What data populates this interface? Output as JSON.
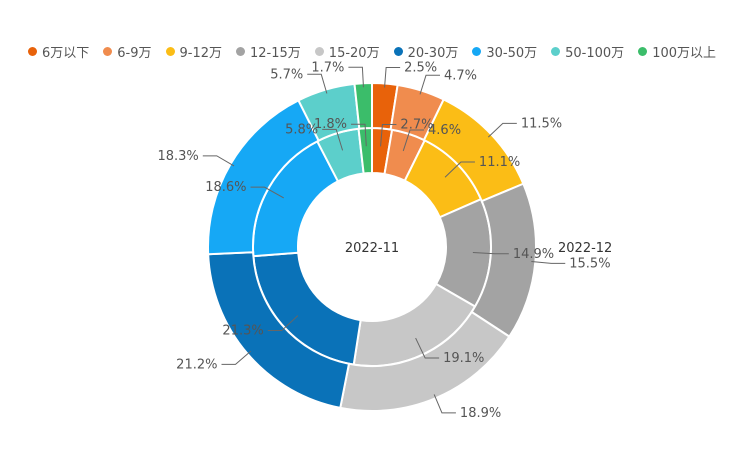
{
  "chart_data": {
    "type": "pie",
    "categories": [
      "6万以下",
      "6-9万",
      "9-12万",
      "12-15万",
      "15-20万",
      "20-30万",
      "30-50万",
      "50-100万",
      "100万以上"
    ],
    "colors": [
      "#e8620a",
      "#f08c4e",
      "#fbbd16",
      "#a3a3a3",
      "#c7c7c7",
      "#0a72b8",
      "#16a8f5",
      "#5ccfcb",
      "#3bbd6a"
    ],
    "series": [
      {
        "name": "2022-11",
        "values": [
          2.7,
          4.6,
          11.1,
          14.9,
          19.1,
          21.3,
          18.6,
          5.8,
          1.8
        ],
        "labels": [
          "2.7%",
          "4.6%",
          "11.1%",
          "14.9%",
          "19.1%",
          "21.3%",
          "18.6%",
          "5.8%",
          "1.8%"
        ]
      },
      {
        "name": "2022-12",
        "values": [
          2.5,
          4.7,
          11.5,
          15.5,
          18.9,
          21.2,
          18.3,
          5.7,
          1.7
        ],
        "labels": [
          "2.5%",
          "4.7%",
          "11.5%",
          "15.5%",
          "18.9%",
          "21.2%",
          "18.3%",
          "5.7%",
          "1.7%"
        ]
      }
    ]
  }
}
